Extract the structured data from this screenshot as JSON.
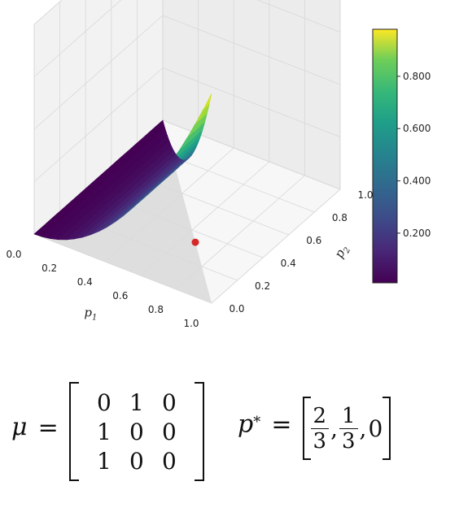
{
  "chart_data": {
    "type": "surface3d",
    "xlabel": "p",
    "xlabel_sub": "1",
    "ylabel": "p",
    "ylabel_sub": "2",
    "x_ticks": [
      "0.0",
      "0.2",
      "0.4",
      "0.6",
      "0.8",
      "1.0"
    ],
    "y_ticks": [
      "0.0",
      "0.2",
      "0.4",
      "0.6",
      "0.8",
      "1.0"
    ],
    "xlim": [
      0,
      1
    ],
    "ylim": [
      0,
      1
    ],
    "surface": "z = p1^2 over the simplex p1 + p2 <= 1",
    "z_range": [
      0,
      1
    ],
    "colormap": "viridis",
    "grid": true,
    "marker": {
      "x": 0.667,
      "y": 0.333,
      "z": 0,
      "color": "#d62728"
    },
    "simplex_shade": "#d9d9d9",
    "colorbar": {
      "ticks": [
        {
          "value": 0.2,
          "label": "0.200"
        },
        {
          "value": 0.4,
          "label": "0.400"
        },
        {
          "value": 0.6,
          "label": "0.600"
        },
        {
          "value": 0.8,
          "label": "0.800"
        }
      ],
      "range": [
        0.01,
        0.98
      ]
    }
  },
  "equations": {
    "mu_symbol": "μ",
    "equals": "=",
    "matrix": [
      [
        "0",
        "1",
        "0"
      ],
      [
        "1",
        "0",
        "0"
      ],
      [
        "1",
        "0",
        "0"
      ]
    ],
    "pstar_symbol": "p",
    "pstar_sup": "*",
    "vector": [
      {
        "num": "2",
        "den": "3"
      },
      {
        "num": "1",
        "den": "3"
      },
      {
        "plain": "0"
      }
    ]
  }
}
